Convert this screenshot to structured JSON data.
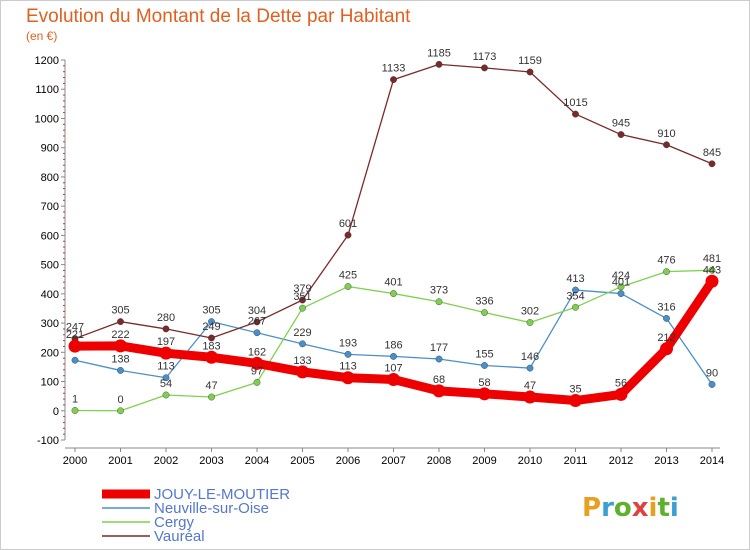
{
  "header": {
    "title": "Evolution du Montant de la Dette par Habitant",
    "unit": "(en €)"
  },
  "logo": {
    "text": "Proxiti",
    "colors": [
      "#e8a020",
      "#3aa0d0",
      "#60b030",
      "#e04040",
      "#e8a020",
      "#60b030",
      "#3aa0d0"
    ]
  },
  "chart_data": {
    "type": "line",
    "title": "Evolution du Montant de la Dette par Habitant",
    "subtitle": "(en €)",
    "xlabel": "",
    "ylabel": "",
    "x": [
      "2000",
      "2001",
      "2002",
      "2003",
      "2004",
      "2005",
      "2006",
      "2007",
      "2008",
      "2009",
      "2010",
      "2011",
      "2012",
      "2013",
      "2014"
    ],
    "ylim": [
      -100,
      1200
    ],
    "yticks": [
      -100,
      0,
      100,
      200,
      300,
      400,
      500,
      600,
      700,
      800,
      900,
      1000,
      1100,
      1200
    ],
    "grid": false,
    "legend_position": "bottom-left",
    "series": [
      {
        "name": "JOUY-LE-MOUTIER",
        "color": "#ee0000",
        "values": [
          221,
          222,
          197,
          183,
          162,
          133,
          113,
          107,
          68,
          58,
          47,
          35,
          56,
          212,
          443
        ],
        "labels": [
          "221",
          "222",
          "197",
          "183",
          "162",
          "133",
          "113",
          "107",
          "68",
          "58",
          "47",
          "35",
          "56",
          "212",
          "443"
        ]
      },
      {
        "name": "Neuville-sur-Oise",
        "color": "#4a90c8",
        "values": [
          173,
          138,
          113,
          305,
          267,
          229,
          193,
          186,
          177,
          155,
          146,
          413,
          401,
          316,
          90
        ],
        "labels": [
          "",
          "138",
          "113",
          "305",
          "267",
          "229",
          "193",
          "186",
          "177",
          "155",
          "146",
          "413",
          "401",
          "316",
          "90"
        ]
      },
      {
        "name": "Cergy",
        "color": "#80d050",
        "values": [
          1,
          0,
          54,
          47,
          97,
          351,
          425,
          401,
          373,
          336,
          302,
          354,
          424,
          476,
          481
        ],
        "labels": [
          "1",
          "0",
          "54",
          "47",
          "97",
          "351",
          "425",
          "401",
          "373",
          "336",
          "302",
          "354",
          "424",
          "476",
          "481"
        ]
      },
      {
        "name": "Vauréal",
        "color": "#7a2a2a",
        "values": [
          247,
          305,
          280,
          249,
          304,
          379,
          601,
          1133,
          1185,
          1173,
          1159,
          1015,
          945,
          910,
          845
        ],
        "labels": [
          "247",
          "305",
          "280",
          "249",
          "304",
          "379",
          "601",
          "1133",
          "1185",
          "1173",
          "1159",
          "1015",
          "945",
          "910",
          "845"
        ]
      }
    ]
  }
}
